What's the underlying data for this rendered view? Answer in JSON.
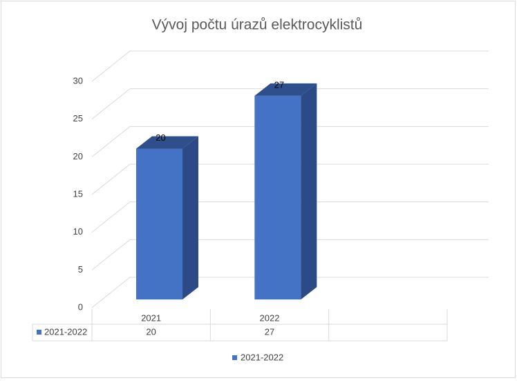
{
  "chart_data": {
    "type": "bar3d",
    "title": "Vývoj počtu úrazů elektrocyklistů",
    "categories": [
      "2021",
      "2022",
      null
    ],
    "series": [
      {
        "name": "2021-2022",
        "color": "#4472c4",
        "values": [
          20,
          27,
          null
        ]
      }
    ],
    "ylim": [
      0,
      30
    ],
    "yticks": [
      0,
      5,
      10,
      15,
      20,
      25,
      30
    ],
    "grid": true,
    "data_table": true,
    "legend": "bottom"
  }
}
